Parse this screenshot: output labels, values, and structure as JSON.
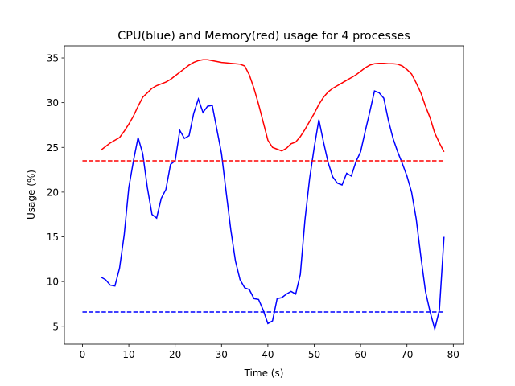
{
  "chart_data": {
    "type": "line",
    "title": "CPU(blue) and Memory(red) usage for 4 processes",
    "xlabel": "Time (s)",
    "ylabel": "Usage (%)",
    "xlim": [
      -3.9,
      82.2
    ],
    "ylim": [
      3.0,
      36.35
    ],
    "xticks": [
      0,
      10,
      20,
      30,
      40,
      50,
      60,
      70,
      80
    ],
    "yticks": [
      5,
      10,
      15,
      20,
      25,
      30,
      35
    ],
    "series": [
      {
        "color": "#0000ff",
        "dashed": false,
        "x": [
          4,
          5,
          6,
          7,
          8,
          9,
          10,
          11,
          12,
          13,
          14,
          15,
          16,
          17,
          18,
          19,
          20,
          21,
          22,
          23,
          24,
          25,
          26,
          27,
          28,
          29,
          30,
          31,
          32,
          33,
          34,
          35,
          36,
          37,
          38,
          39,
          40,
          41,
          42,
          43,
          44,
          45,
          46,
          47,
          48,
          49,
          50,
          51,
          52,
          53,
          54,
          55,
          56,
          57,
          58,
          59,
          60,
          61,
          62,
          63,
          64,
          65,
          66,
          67,
          68,
          69,
          70,
          71,
          72,
          73,
          74,
          75,
          76,
          77,
          78
        ],
        "values": [
          10.5,
          10.2,
          9.6,
          9.5,
          11.5,
          15.2,
          20.5,
          23.5,
          26.1,
          24.3,
          20.5,
          17.5,
          17.1,
          19.3,
          20.3,
          23.1,
          23.5,
          26.9,
          26.0,
          26.3,
          28.8,
          30.4,
          28.9,
          29.6,
          29.7,
          27.0,
          24.3,
          20.0,
          15.8,
          12.3,
          10.2,
          9.3,
          9.1,
          8.1,
          8.0,
          6.8,
          5.3,
          5.6,
          8.1,
          8.2,
          8.6,
          8.9,
          8.6,
          10.8,
          16.9,
          21.5,
          25.0,
          28.1,
          25.6,
          23.3,
          21.7,
          21.0,
          20.8,
          22.1,
          21.8,
          23.4,
          24.5,
          26.8,
          29.0,
          31.3,
          31.1,
          30.5,
          28.0,
          26.0,
          24.5,
          23.2,
          21.8,
          20.0,
          17.0,
          12.8,
          8.9,
          6.6,
          4.7,
          6.8,
          15.0
        ]
      },
      {
        "color": "#ff0000",
        "dashed": false,
        "x": [
          4,
          5,
          6,
          7,
          8,
          9,
          10,
          11,
          12,
          13,
          14,
          15,
          16,
          17,
          18,
          19,
          20,
          21,
          22,
          23,
          24,
          25,
          26,
          27,
          28,
          29,
          30,
          31,
          32,
          33,
          34,
          35,
          36,
          37,
          38,
          39,
          40,
          41,
          42,
          43,
          44,
          45,
          46,
          47,
          48,
          49,
          50,
          51,
          52,
          53,
          54,
          55,
          56,
          57,
          58,
          59,
          60,
          61,
          62,
          63,
          64,
          65,
          66,
          67,
          68,
          69,
          70,
          71,
          72,
          73,
          74,
          75,
          76,
          77,
          78
        ],
        "values": [
          24.7,
          25.1,
          25.5,
          25.8,
          26.1,
          26.8,
          27.6,
          28.5,
          29.6,
          30.6,
          31.1,
          31.6,
          31.9,
          32.1,
          32.3,
          32.6,
          33.0,
          33.4,
          33.8,
          34.2,
          34.5,
          34.7,
          34.8,
          34.8,
          34.7,
          34.6,
          34.5,
          34.45,
          34.4,
          34.35,
          34.3,
          34.1,
          33.1,
          31.6,
          29.8,
          27.8,
          25.8,
          25.0,
          24.8,
          24.6,
          24.9,
          25.4,
          25.6,
          26.2,
          27.0,
          27.9,
          28.8,
          29.8,
          30.6,
          31.2,
          31.6,
          31.9,
          32.2,
          32.5,
          32.8,
          33.1,
          33.5,
          33.9,
          34.2,
          34.35,
          34.4,
          34.4,
          34.35,
          34.35,
          34.3,
          34.1,
          33.7,
          33.2,
          32.2,
          31.1,
          29.6,
          28.3,
          26.6,
          25.5,
          24.5
        ]
      },
      {
        "color": "#ff0000",
        "dashed": true,
        "x": [
          0,
          78
        ],
        "values": [
          23.5,
          23.5
        ]
      },
      {
        "color": "#0000ff",
        "dashed": true,
        "x": [
          0,
          78
        ],
        "values": [
          6.6,
          6.6
        ]
      }
    ]
  }
}
